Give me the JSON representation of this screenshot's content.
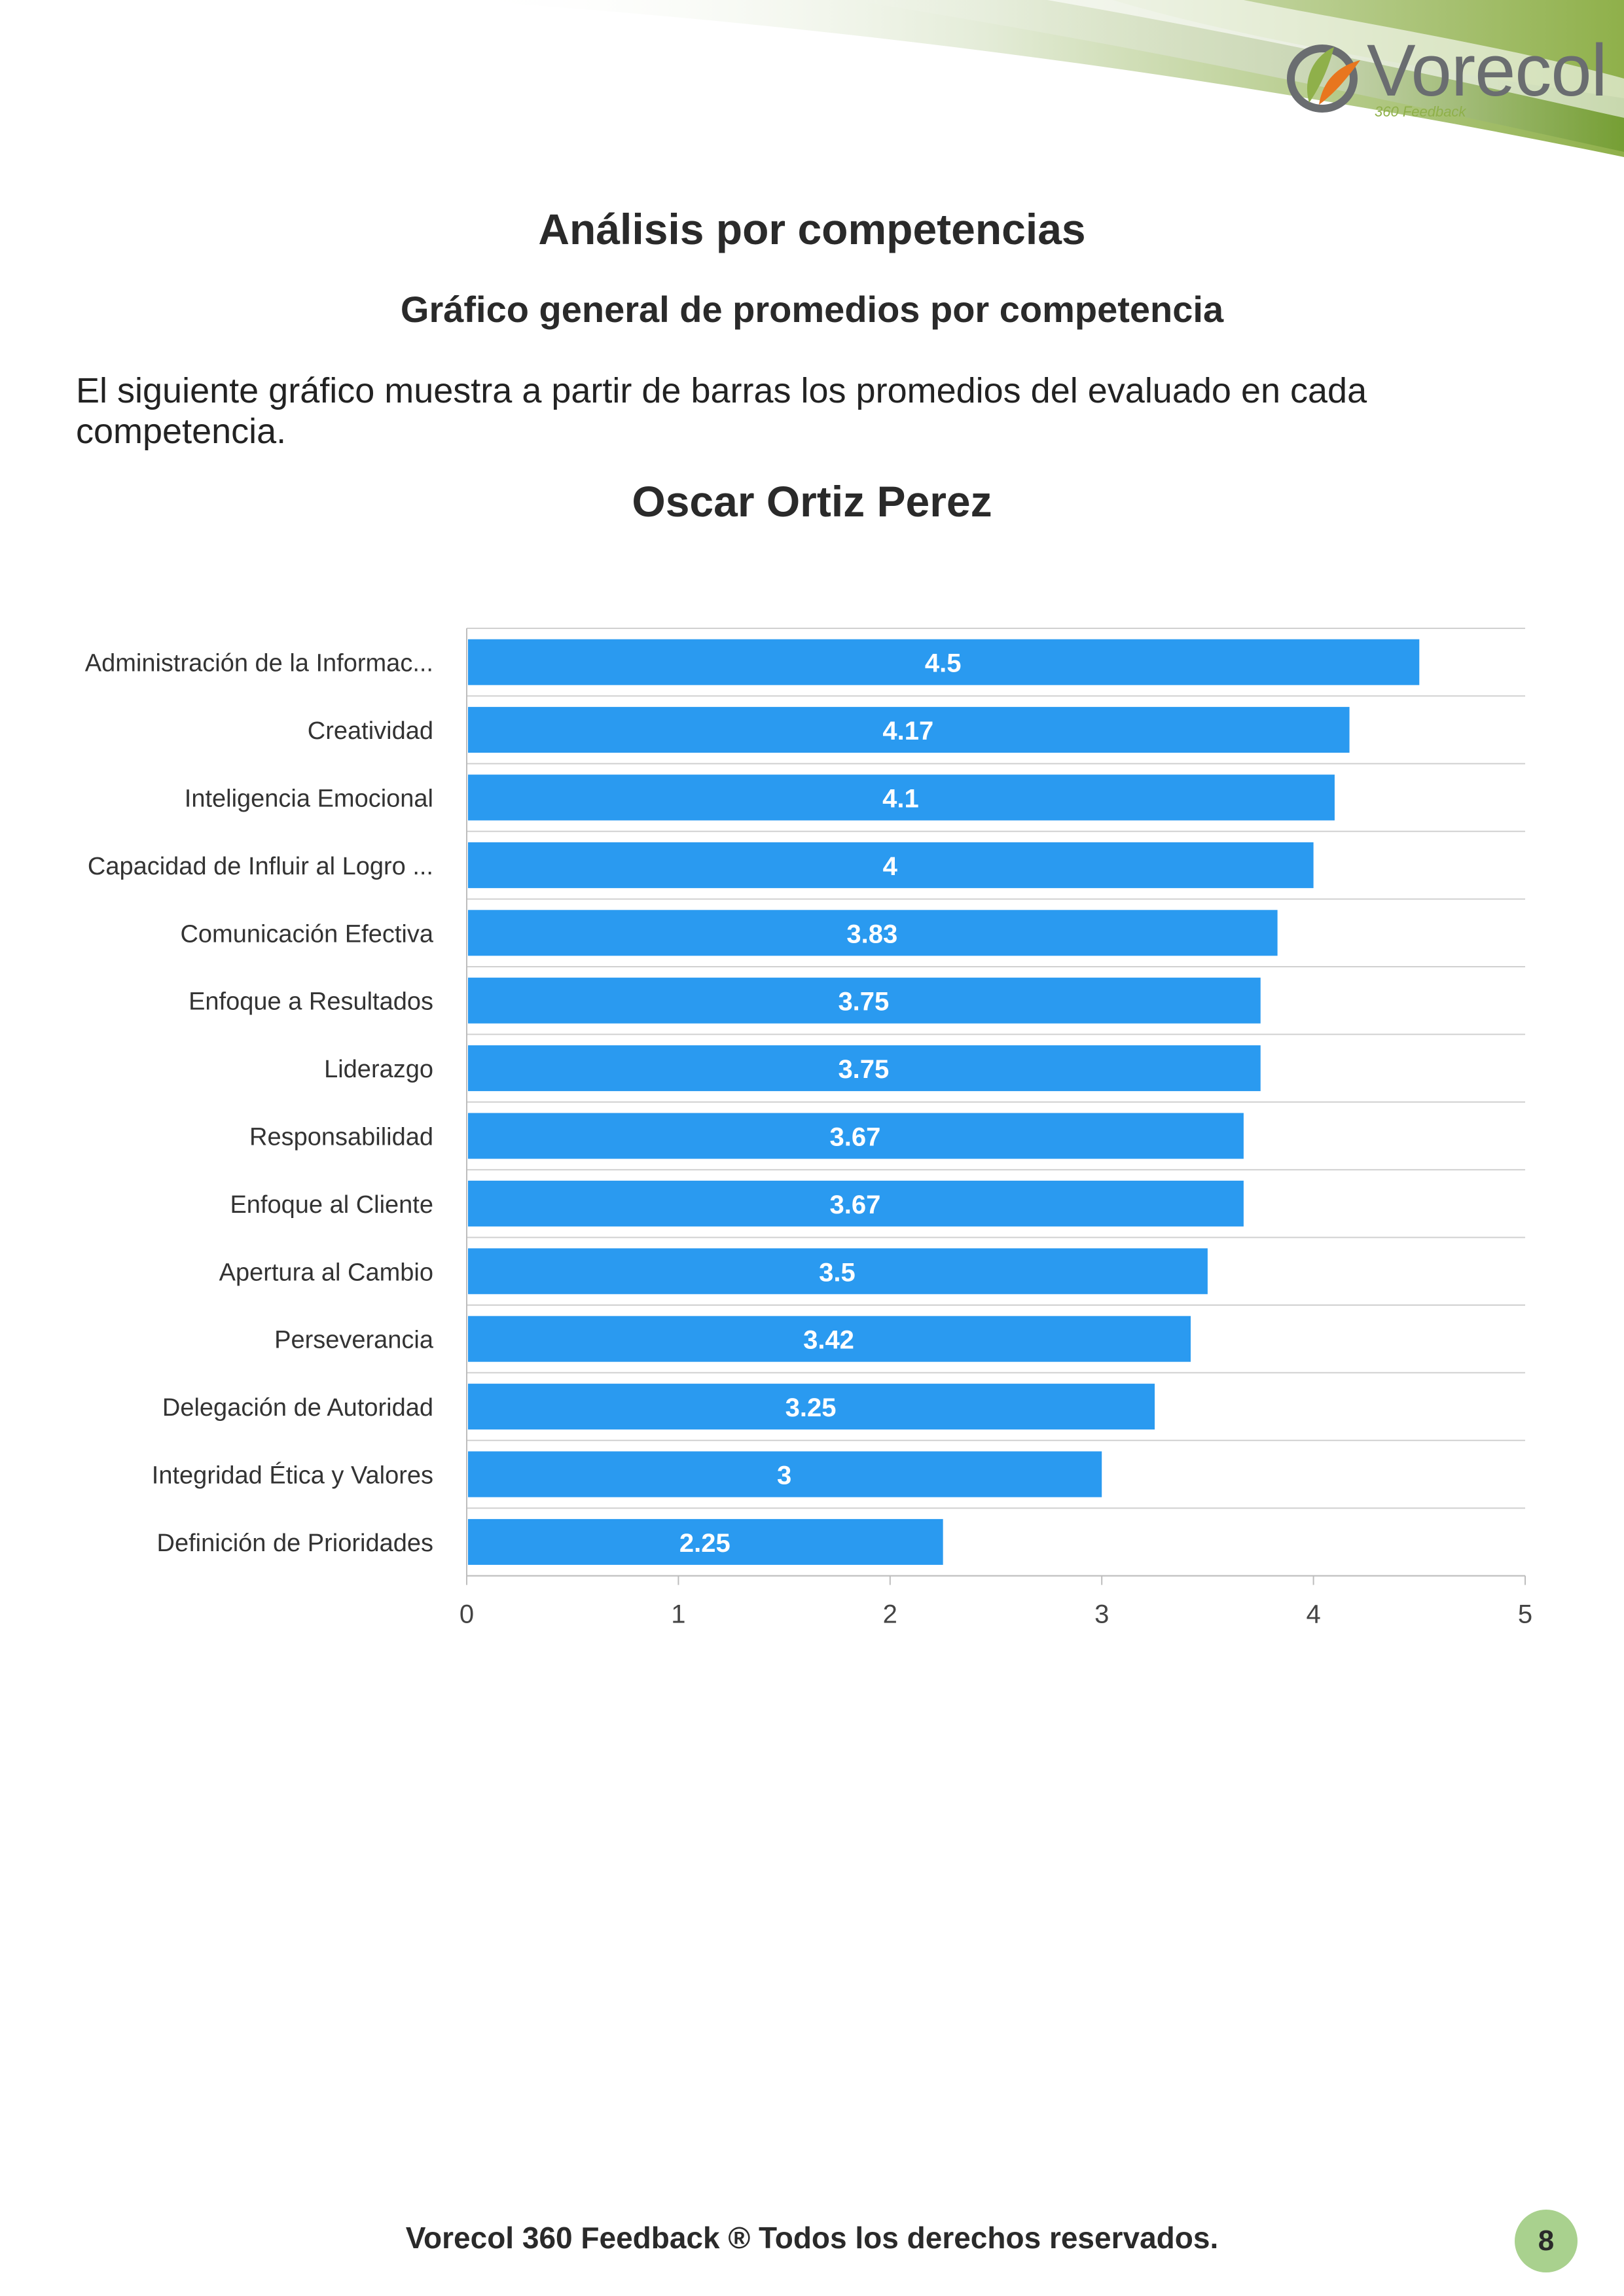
{
  "header": {
    "logo_text": "Vorecol",
    "logo_subtext": "360 Feedback",
    "logo_icon": "vorecol-leaf-icon"
  },
  "title": "Análisis por competencias",
  "subtitle": "Gráfico general de promedios por competencia",
  "description": "El siguiente gráfico muestra a partir de barras los promedios del evaluado en cada competencia.",
  "person_name": "Oscar Ortiz Perez",
  "chart_data": {
    "type": "bar",
    "orientation": "horizontal",
    "categories": [
      "Administración de la Informac...",
      "Creatividad",
      "Inteligencia Emocional",
      "Capacidad de Influir al Logro ...",
      "Comunicación Efectiva",
      "Enfoque a Resultados",
      "Liderazgo",
      "Responsabilidad",
      "Enfoque al Cliente",
      "Apertura al Cambio",
      "Perseverancia",
      "Delegación de Autoridad",
      "Integridad Ética y Valores",
      "Definición de Prioridades"
    ],
    "values": [
      4.5,
      4.17,
      4.1,
      4,
      3.83,
      3.75,
      3.75,
      3.67,
      3.67,
      3.5,
      3.42,
      3.25,
      3,
      2.25
    ],
    "value_labels": [
      "4.5",
      "4.17",
      "4.1",
      "4",
      "3.83",
      "3.75",
      "3.75",
      "3.67",
      "3.67",
      "3.5",
      "3.42",
      "3.25",
      "3",
      "2.25"
    ],
    "xlim": [
      0,
      5
    ],
    "xticks": [
      "0",
      "1",
      "2",
      "3",
      "4",
      "5"
    ],
    "bar_color": "#2a9af0",
    "grid": true,
    "title": "",
    "xlabel": "",
    "ylabel": ""
  },
  "footer": {
    "text": "Vorecol 360 Feedback ® Todos los derechos reservados.",
    "page_number": "8",
    "badge_color": "#a9d18e"
  }
}
